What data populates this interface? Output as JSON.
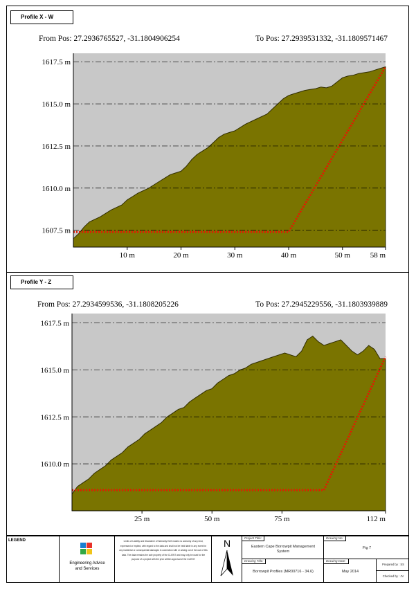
{
  "chart_data": [
    {
      "type": "area",
      "panel_title": "Profile X - W",
      "from_label": "From Pos: 27.2936765527, -31.1804906254",
      "to_label": "To Pos: 27.2939531332, -31.1809571467",
      "xlim": [
        0,
        58
      ],
      "ylim": [
        1606.5,
        1618
      ],
      "x_ticks": [
        10,
        20,
        30,
        40,
        50,
        58
      ],
      "x_tick_labels": [
        "10 m",
        "20 m",
        "30 m",
        "40 m",
        "50 m",
        "58 m"
      ],
      "y_ticks": [
        1607.5,
        1610.0,
        1612.5,
        1615.0,
        1617.5
      ],
      "y_tick_labels": [
        "1607.5 m",
        "1610.0 m",
        "1612.5 m",
        "1615.0 m",
        "1617.5 m"
      ],
      "x": [
        0,
        1,
        2,
        3,
        5,
        7,
        9,
        10,
        11,
        12,
        14,
        16,
        17,
        18,
        19,
        20,
        21,
        22,
        23,
        24,
        25,
        26,
        27,
        28,
        29,
        30,
        32,
        34,
        36,
        37,
        38,
        39,
        40,
        41,
        42,
        43,
        44,
        45,
        46,
        47,
        48,
        49,
        50,
        51,
        52,
        53,
        54,
        55,
        56,
        57,
        58
      ],
      "values": [
        1607.0,
        1607.3,
        1607.7,
        1608.0,
        1608.3,
        1608.7,
        1609.0,
        1609.3,
        1609.5,
        1609.7,
        1610.0,
        1610.4,
        1610.6,
        1610.8,
        1610.9,
        1611.0,
        1611.3,
        1611.7,
        1612.0,
        1612.2,
        1612.4,
        1612.7,
        1613.0,
        1613.2,
        1613.3,
        1613.4,
        1613.8,
        1614.1,
        1614.4,
        1614.7,
        1615.0,
        1615.3,
        1615.5,
        1615.6,
        1615.7,
        1615.8,
        1615.85,
        1615.9,
        1616.0,
        1615.95,
        1616.05,
        1616.3,
        1616.55,
        1616.65,
        1616.7,
        1616.8,
        1616.85,
        1616.9,
        1617.0,
        1617.1,
        1617.2
      ],
      "series_color": "#7a7400",
      "plot_bg": "#c8c8c8",
      "overlay_x": [
        0,
        40,
        58
      ],
      "overlay_y": [
        1607.4,
        1607.4,
        1617.2
      ],
      "overlay_color": "#e21a00"
    },
    {
      "type": "area",
      "panel_title": "Profile Y - Z",
      "from_label": "From Pos: 27.2934599536, -31.1808205226",
      "to_label": "To Pos: 27.2945229556, -31.1803939889",
      "xlim": [
        0,
        112
      ],
      "ylim": [
        1607.5,
        1618
      ],
      "x_ticks": [
        25,
        50,
        75,
        112
      ],
      "x_tick_labels": [
        "25 m",
        "50 m",
        "75 m",
        "112 m"
      ],
      "y_ticks": [
        1610.0,
        1612.5,
        1615.0,
        1617.5
      ],
      "y_tick_labels": [
        "1610.0 m",
        "1612.5 m",
        "1615.0 m",
        "1617.5 m"
      ],
      "x": [
        0,
        2,
        4,
        6,
        8,
        10,
        12,
        14,
        16,
        18,
        20,
        22,
        24,
        26,
        28,
        30,
        32,
        34,
        36,
        38,
        40,
        42,
        44,
        46,
        48,
        50,
        52,
        54,
        56,
        58,
        60,
        62,
        64,
        66,
        68,
        70,
        72,
        74,
        76,
        78,
        80,
        82,
        84,
        86,
        88,
        90,
        92,
        94,
        96,
        98,
        100,
        102,
        104,
        106,
        108,
        110,
        112
      ],
      "values": [
        1608.4,
        1608.8,
        1609.0,
        1609.2,
        1609.5,
        1609.7,
        1609.9,
        1610.2,
        1610.4,
        1610.6,
        1610.9,
        1611.1,
        1611.3,
        1611.6,
        1611.8,
        1612.0,
        1612.2,
        1612.5,
        1612.7,
        1612.9,
        1613.0,
        1613.3,
        1613.5,
        1613.7,
        1613.9,
        1614.0,
        1614.3,
        1614.5,
        1614.7,
        1614.8,
        1615.0,
        1615.1,
        1615.3,
        1615.4,
        1615.5,
        1615.6,
        1615.7,
        1615.8,
        1615.9,
        1615.8,
        1615.7,
        1616.0,
        1616.6,
        1616.8,
        1616.5,
        1616.3,
        1616.4,
        1616.5,
        1616.6,
        1616.3,
        1616.0,
        1615.8,
        1616.0,
        1616.3,
        1616.1,
        1615.6,
        1615.6
      ],
      "series_color": "#7a7400",
      "plot_bg": "#c8c8c8",
      "overlay_x": [
        0,
        90,
        112
      ],
      "overlay_y": [
        1608.6,
        1608.6,
        1615.7
      ],
      "overlay_color": "#e21a00"
    }
  ],
  "title_block": {
    "legend_label": "LEGEND",
    "org_name_line1": "Engineering Advice",
    "org_name_line2": "and Services",
    "disclaimer": "Limits of Liability and Disclaimer of Warranty EAS makes no warranty of any kind, expressed or implied, with regard to the data and shall not be held liable in any event for any incidental or consequential damages in connection with or arising out of the use of this data. The data remains the sole property of the CLIENT and may only be used for the purpose of a project with the prior written approval of the CLIENT.",
    "north_label": "N",
    "project_title_label": "Project Title:",
    "project_title": "Eastern Cape Borrowpit Management System",
    "drawing_title_label": "Drawing Title:",
    "drawing_title": "Borrowpit Profiles (MR00716 - 34.6)",
    "drawing_no_label": "Drawing No:",
    "drawing_no": "Fig 7",
    "drawing_date_label": "Drawing Date:",
    "drawing_date": "May 2014",
    "prepared_by": "Prepared by : SS",
    "checked_by": "Checked by : JV"
  }
}
